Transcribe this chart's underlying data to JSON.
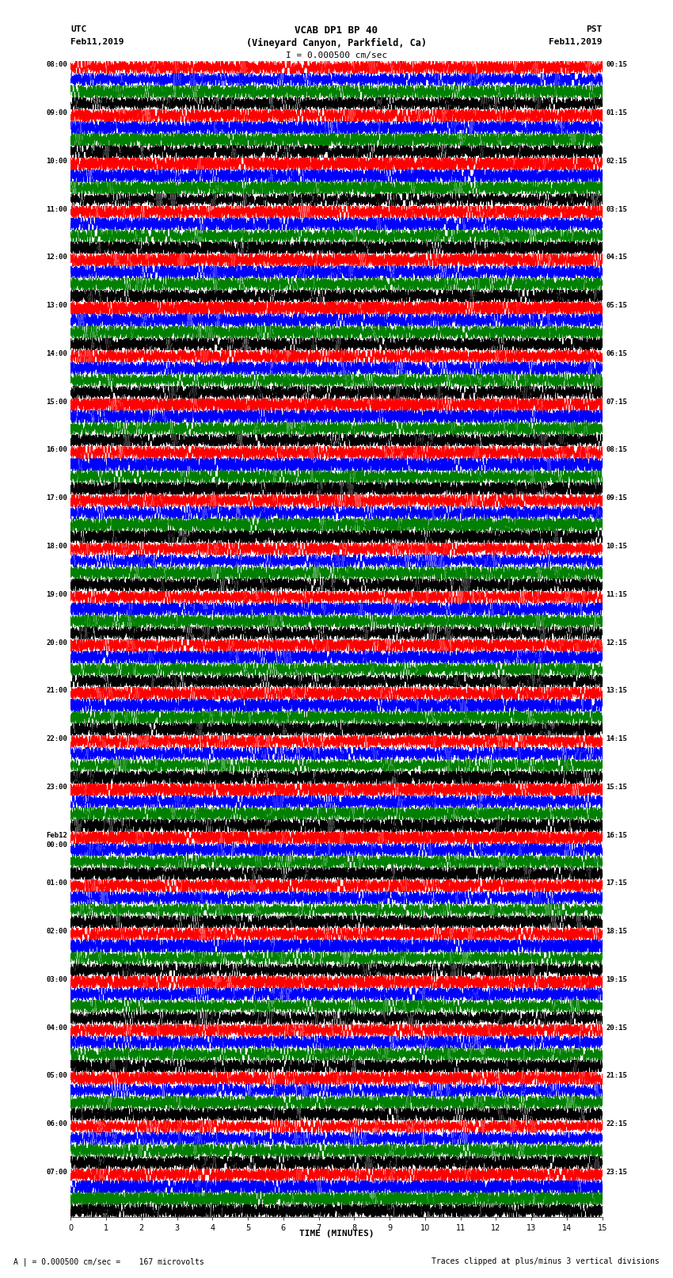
{
  "title_line1": "VCAB DP1 BP 40",
  "title_line2": "(Vineyard Canyon, Parkfield, Ca)",
  "scale_label": "I = 0.000500 cm/sec",
  "utc_label": "UTC",
  "utc_date": "Feb11,2019",
  "pst_label": "PST",
  "pst_date": "Feb11,2019",
  "xlabel": "TIME (MINUTES)",
  "footer_left": "A | = 0.000500 cm/sec =    167 microvolts",
  "footer_right": "Traces clipped at plus/minus 3 vertical divisions",
  "xlim": [
    0,
    15
  ],
  "xticks": [
    0,
    1,
    2,
    3,
    4,
    5,
    6,
    7,
    8,
    9,
    10,
    11,
    12,
    13,
    14,
    15
  ],
  "left_times": [
    "08:00",
    "09:00",
    "10:00",
    "11:00",
    "12:00",
    "13:00",
    "14:00",
    "15:00",
    "16:00",
    "17:00",
    "18:00",
    "19:00",
    "20:00",
    "21:00",
    "22:00",
    "23:00",
    "Feb12\n00:00",
    "01:00",
    "02:00",
    "03:00",
    "04:00",
    "05:00",
    "06:00",
    "07:00"
  ],
  "right_times": [
    "00:15",
    "01:15",
    "02:15",
    "03:15",
    "04:15",
    "05:15",
    "06:15",
    "07:15",
    "08:15",
    "09:15",
    "10:15",
    "11:15",
    "12:15",
    "13:15",
    "14:15",
    "15:15",
    "16:15",
    "17:15",
    "18:15",
    "19:15",
    "20:15",
    "21:15",
    "22:15",
    "23:15"
  ],
  "num_rows": 24,
  "num_traces_per_row": 4,
  "trace_colors": [
    "red",
    "blue",
    "green",
    "black"
  ],
  "bg_color": "white",
  "seed": 42,
  "minutes": 15,
  "samples_per_minute": 600
}
